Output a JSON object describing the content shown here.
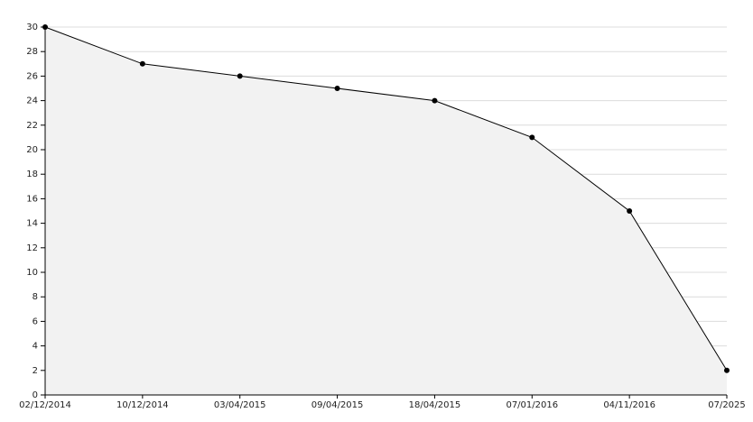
{
  "chart_data": {
    "type": "area",
    "categories": [
      "02/12/2014",
      "10/12/2014",
      "03/04/2015",
      "09/04/2015",
      "18/04/2015",
      "07/01/2016",
      "04/11/2016",
      "07/2025"
    ],
    "values": [
      30,
      27,
      26,
      25,
      24,
      21,
      15,
      2
    ],
    "color": "#000000",
    "fill": "#f2f2f2",
    "ylim": [
      0,
      30
    ],
    "yticks": [
      0,
      2,
      4,
      6,
      8,
      10,
      12,
      14,
      16,
      18,
      20,
      22,
      24,
      26,
      28,
      30
    ],
    "grid": true
  }
}
